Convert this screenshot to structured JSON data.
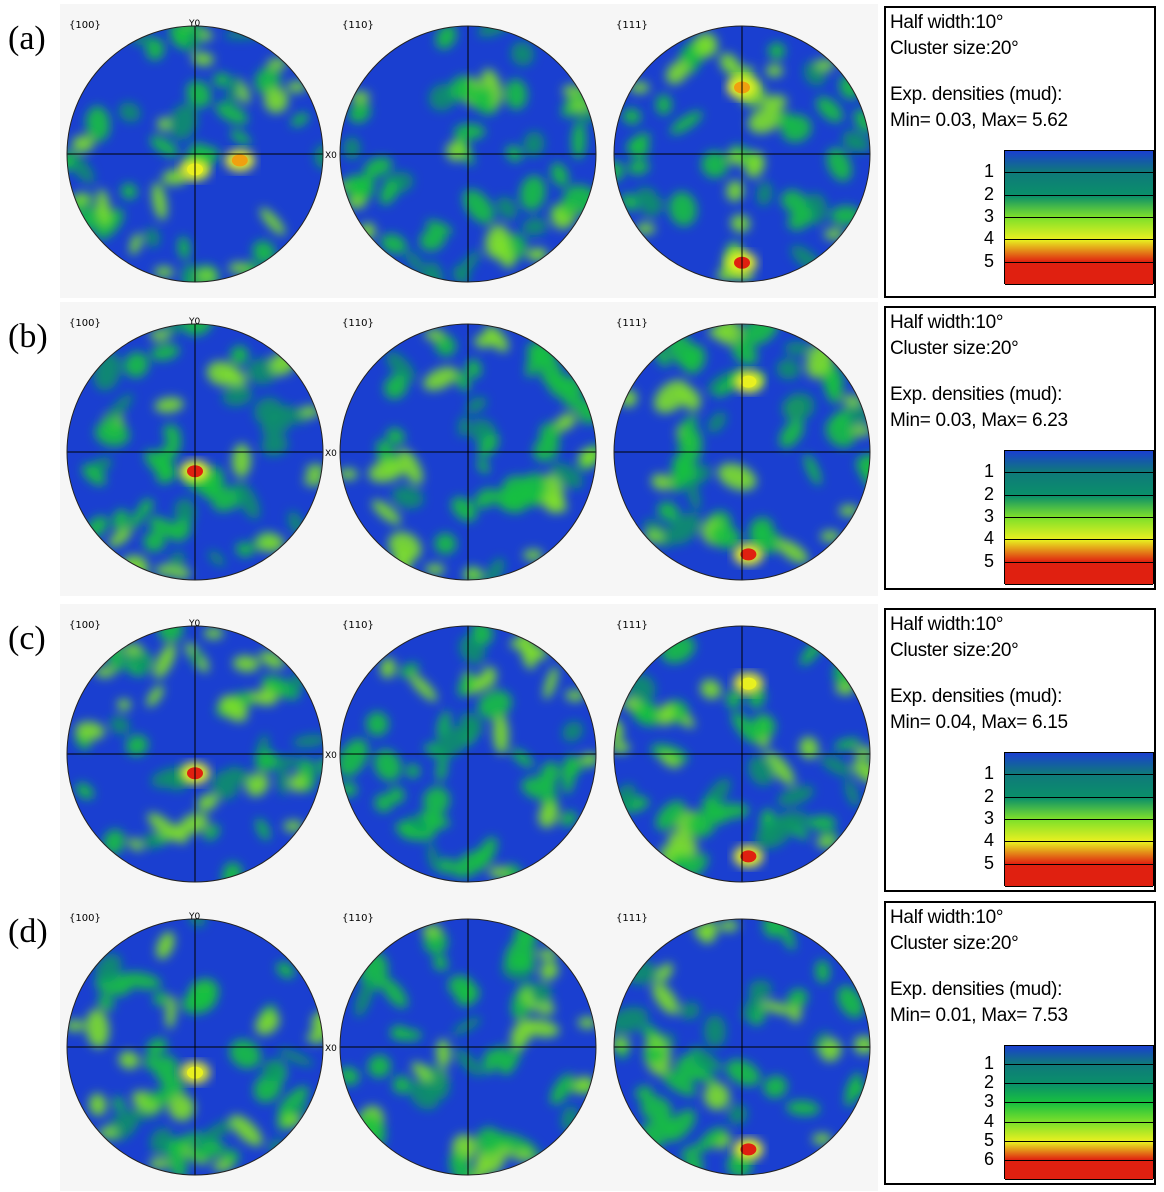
{
  "chart_data": [
    {
      "type": "pole_figure",
      "panel_label": "(a)",
      "pole_labels": [
        "{100}",
        "{110}",
        "{111}"
      ],
      "axis_labels": {
        "y": "Y0",
        "x": "X0"
      },
      "legend": {
        "half_width": "Half width:10°",
        "cluster_size": "Cluster size:20°",
        "densities_title": "Exp. densities (mud):",
        "min_max": "Min= 0.03, Max= 5.62",
        "min": 0.03,
        "max": 5.62,
        "levels": [
          1,
          2,
          3,
          4,
          5
        ]
      },
      "hotspots": [
        {
          "pole": "{100}",
          "x": 0.35,
          "y": -0.05,
          "density": 4.5
        },
        {
          "pole": "{100}",
          "x": 0.0,
          "y": -0.12,
          "density": 3.5
        },
        {
          "pole": "{111}",
          "x": 0.0,
          "y": 0.52,
          "density": 4.0
        },
        {
          "pole": "{111}",
          "x": 0.0,
          "y": -0.85,
          "density": 5.6
        }
      ]
    },
    {
      "type": "pole_figure",
      "panel_label": "(b)",
      "pole_labels": [
        "{100}",
        "{110}",
        "{111}"
      ],
      "axis_labels": {
        "y": "Y0",
        "x": "X0"
      },
      "legend": {
        "half_width": "Half width:10°",
        "cluster_size": "Cluster size:20°",
        "densities_title": "Exp. densities (mud):",
        "min_max": "Min= 0.03, Max= 6.23",
        "min": 0.03,
        "max": 6.23,
        "levels": [
          1,
          2,
          3,
          4,
          5
        ]
      },
      "hotspots": [
        {
          "pole": "{100}",
          "x": 0.0,
          "y": -0.15,
          "density": 6.0
        },
        {
          "pole": "{111}",
          "x": 0.05,
          "y": 0.55,
          "density": 3.8
        },
        {
          "pole": "{111}",
          "x": 0.05,
          "y": -0.8,
          "density": 6.2
        }
      ]
    },
    {
      "type": "pole_figure",
      "panel_label": "(c)",
      "pole_labels": [
        "{100}",
        "{110}",
        "{111}"
      ],
      "axis_labels": {
        "y": "Y0",
        "x": "X0"
      },
      "legend": {
        "half_width": "Half width:10°",
        "cluster_size": "Cluster size:20°",
        "densities_title": "Exp. densities (mud):",
        "min_max": "Min= 0.04, Max= 6.15",
        "min": 0.04,
        "max": 6.15,
        "levels": [
          1,
          2,
          3,
          4,
          5
        ]
      },
      "hotspots": [
        {
          "pole": "{100}",
          "x": 0.0,
          "y": -0.15,
          "density": 6.0
        },
        {
          "pole": "{111}",
          "x": 0.05,
          "y": 0.55,
          "density": 3.8
        },
        {
          "pole": "{111}",
          "x": 0.05,
          "y": -0.8,
          "density": 6.1
        }
      ]
    },
    {
      "type": "pole_figure",
      "panel_label": "(d)",
      "pole_labels": [
        "{100}",
        "{110}",
        "{111}"
      ],
      "axis_labels": {
        "y": "Y0",
        "x": "X0"
      },
      "legend": {
        "half_width": "Half width:10°",
        "cluster_size": "Cluster size:20°",
        "densities_title": "Exp. densities (mud):",
        "min_max": "Min= 0.01, Max= 7.53",
        "min": 0.01,
        "max": 7.53,
        "levels": [
          1,
          2,
          3,
          4,
          5,
          6
        ]
      },
      "hotspots": [
        {
          "pole": "{100}",
          "x": 0.0,
          "y": -0.2,
          "density": 3.5
        },
        {
          "pole": "{111}",
          "x": 0.05,
          "y": -0.8,
          "density": 7.5
        }
      ]
    }
  ],
  "colors": {
    "background_blue": "#1a3fd0",
    "level_1": "#0a8f6a",
    "level_2": "#18c040",
    "level_3": "#7ee02a",
    "level_4": "#e8f020",
    "level_5": "#f0a010",
    "level_max": "#e02010"
  }
}
